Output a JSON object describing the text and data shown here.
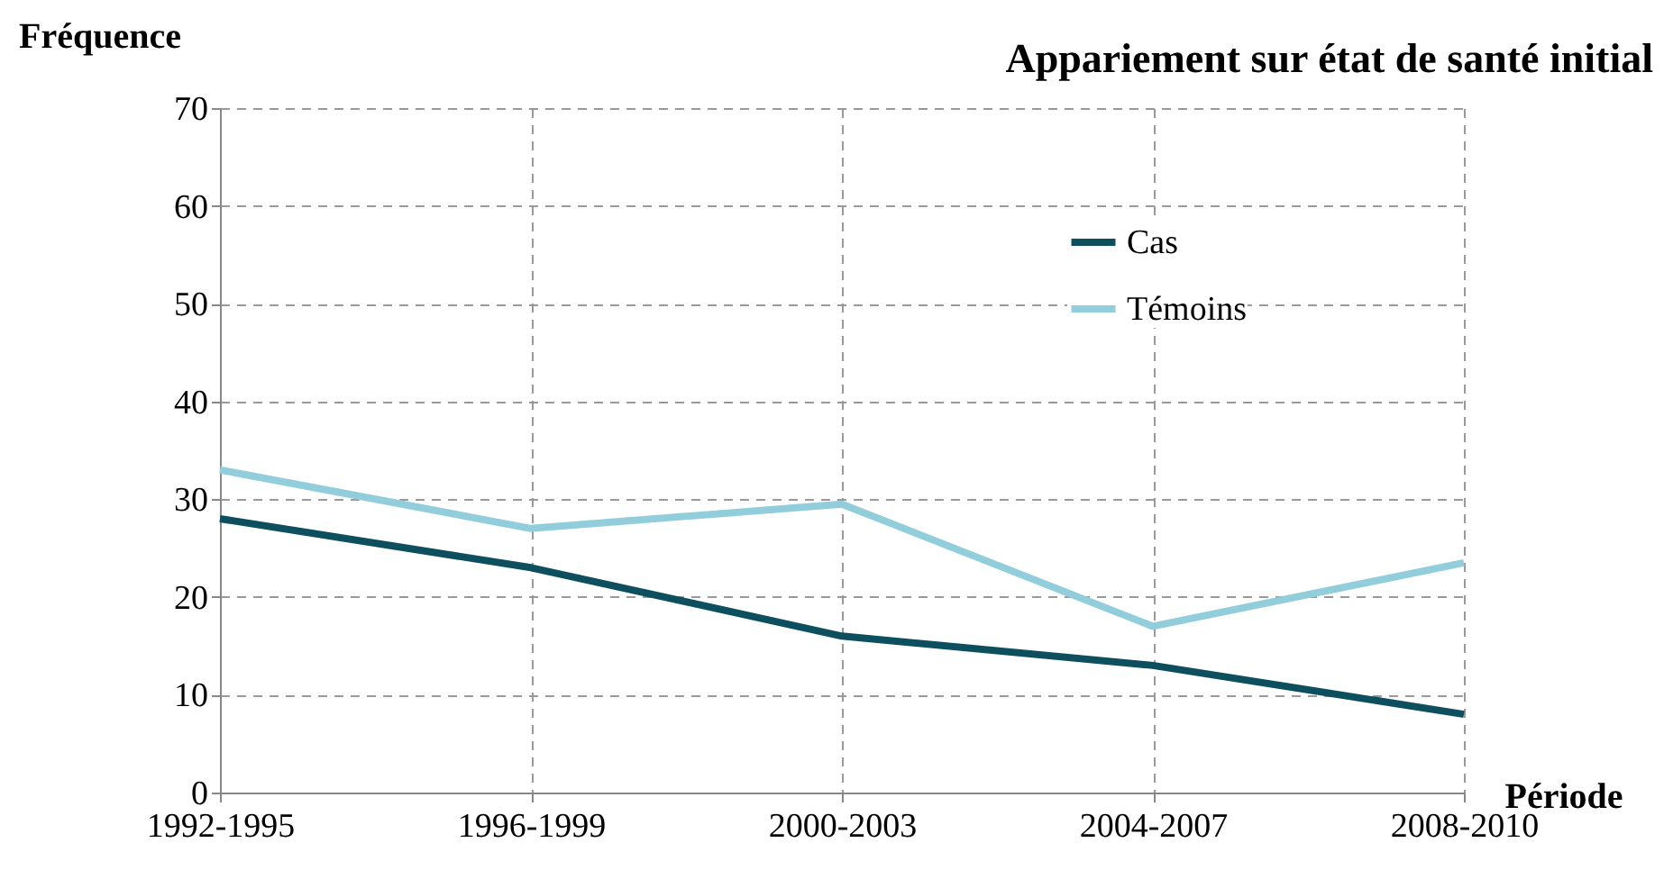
{
  "chart_data": {
    "type": "line",
    "title": "Appariement sur état de santé initial",
    "xlabel": "Période",
    "ylabel": "Fréquence",
    "categories": [
      "1992-1995",
      "1996-1999",
      "2000-2003",
      "2004-2007",
      "2008-2010"
    ],
    "series": [
      {
        "name": "Cas",
        "color": "#0d4f5e",
        "values": [
          28,
          23,
          16,
          13,
          8
        ]
      },
      {
        "name": "Témoins",
        "color": "#92cddc",
        "values": [
          33,
          27,
          29.5,
          17,
          23.5
        ]
      }
    ],
    "ylim": [
      0,
      70
    ],
    "yticks": [
      0,
      10,
      20,
      30,
      40,
      50,
      60,
      70
    ],
    "grid": true,
    "legend": "top right"
  }
}
